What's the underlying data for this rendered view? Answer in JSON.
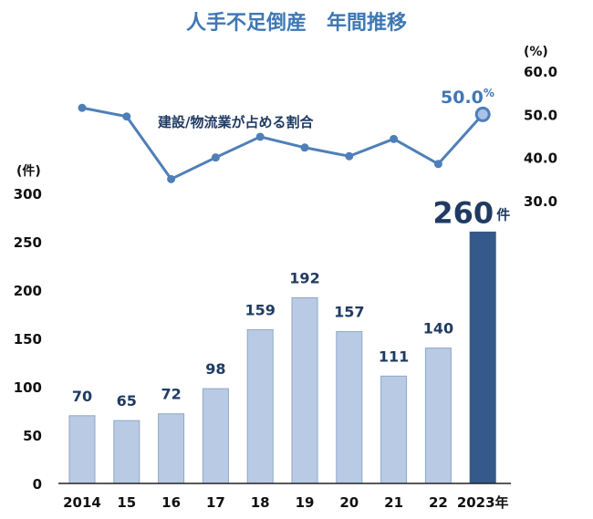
{
  "chart_data": {
    "type": "bar",
    "title": "人手不足倒産　年間推移",
    "categories": [
      "2014",
      "15",
      "16",
      "17",
      "18",
      "19",
      "20",
      "21",
      "22",
      "2023年"
    ],
    "series": [
      {
        "type": "bar",
        "values": [
          70,
          65,
          72,
          98,
          159,
          192,
          157,
          111,
          140,
          260
        ],
        "unit": "件",
        "color": "#b9cbe4",
        "highlight_color": "#35598a",
        "highlight_value_label": "260",
        "highlight_unit_label": "件"
      },
      {
        "type": "line",
        "name": "建設/物流業が占める割合",
        "values": [
          51.5,
          49.5,
          35.0,
          40.0,
          44.8,
          42.3,
          40.3,
          44.3,
          38.5,
          50.0
        ],
        "color": "#4f7fb8",
        "highlight_value_label": "50.0",
        "highlight_unit_label": "%"
      }
    ],
    "left_axis": {
      "unit": "(件)",
      "ylim": [
        0,
        300
      ],
      "ticks": [
        "0",
        "50",
        "100",
        "150",
        "200",
        "250",
        "300"
      ]
    },
    "right_axis": {
      "unit": "(%)",
      "ylim": [
        30,
        60
      ],
      "ticks": [
        "30.0",
        "40.0",
        "50.0",
        "60.0"
      ]
    },
    "grid": false,
    "legend": "none"
  }
}
